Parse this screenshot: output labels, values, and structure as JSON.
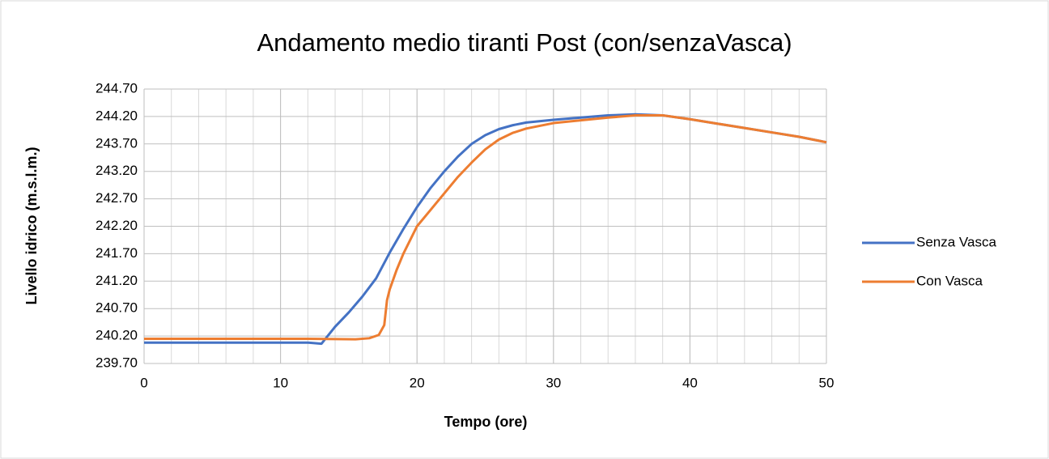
{
  "chart_data": {
    "type": "line",
    "title": "Andamento medio tiranti Post (con/senzaVasca)",
    "xlabel": "Tempo (ore)",
    "ylabel": "Livello idrico (m.s.l.m.)",
    "xlim": [
      0,
      50
    ],
    "xticks": [
      0,
      10,
      20,
      30,
      40,
      50
    ],
    "xminorticks": [
      0,
      2,
      4,
      6,
      8,
      10,
      12,
      14,
      16,
      18,
      20,
      22,
      24,
      26,
      28,
      30,
      32,
      34,
      36,
      38,
      40,
      42,
      44,
      46,
      48,
      50
    ],
    "ylim": [
      239.7,
      244.7
    ],
    "yticks": [
      {
        "value": 239.7,
        "label": "239.70"
      },
      {
        "value": 240.2,
        "label": "240.20"
      },
      {
        "value": 240.7,
        "label": "240.70"
      },
      {
        "value": 241.2,
        "label": "241.20"
      },
      {
        "value": 241.7,
        "label": "241.70"
      },
      {
        "value": 242.2,
        "label": "242.20"
      },
      {
        "value": 242.7,
        "label": "242.70"
      },
      {
        "value": 243.2,
        "label": "243.20"
      },
      {
        "value": 243.7,
        "label": "243.70"
      },
      {
        "value": 244.2,
        "label": "244.20"
      },
      {
        "value": 244.7,
        "label": "244.70"
      }
    ],
    "grid": true,
    "legend": "right",
    "series": [
      {
        "name": "Senza Vasca",
        "color": "#4472c4",
        "x": [
          0,
          12,
          13,
          14,
          15,
          16,
          17,
          18,
          19,
          20,
          21,
          22,
          23,
          24,
          25,
          26,
          27,
          28,
          30,
          32,
          34,
          36,
          38,
          40,
          42,
          44,
          46,
          48,
          50
        ],
        "values": [
          240.08,
          240.08,
          240.06,
          240.37,
          240.63,
          240.92,
          241.25,
          241.72,
          242.15,
          242.55,
          242.9,
          243.2,
          243.47,
          243.7,
          243.86,
          243.97,
          244.04,
          244.09,
          244.14,
          244.18,
          244.22,
          244.24,
          244.22,
          244.15,
          244.07,
          243.99,
          243.91,
          243.83,
          243.73
        ]
      },
      {
        "name": "Con Vasca",
        "color": "#ed7d31",
        "x": [
          0,
          12,
          15.5,
          16.5,
          17.2,
          17.6,
          17.8,
          18,
          18.5,
          19,
          20,
          21,
          22,
          23,
          24,
          25,
          26,
          27,
          28,
          30,
          32,
          34,
          36,
          38,
          40,
          42,
          44,
          46,
          48,
          50
        ],
        "values": [
          240.15,
          240.15,
          240.14,
          240.16,
          240.22,
          240.4,
          240.85,
          241.05,
          241.4,
          241.7,
          242.2,
          242.5,
          242.8,
          243.1,
          243.36,
          243.6,
          243.78,
          243.9,
          243.98,
          244.08,
          244.13,
          244.18,
          244.22,
          244.22,
          244.15,
          244.07,
          243.99,
          243.91,
          243.83,
          243.73
        ]
      }
    ]
  }
}
